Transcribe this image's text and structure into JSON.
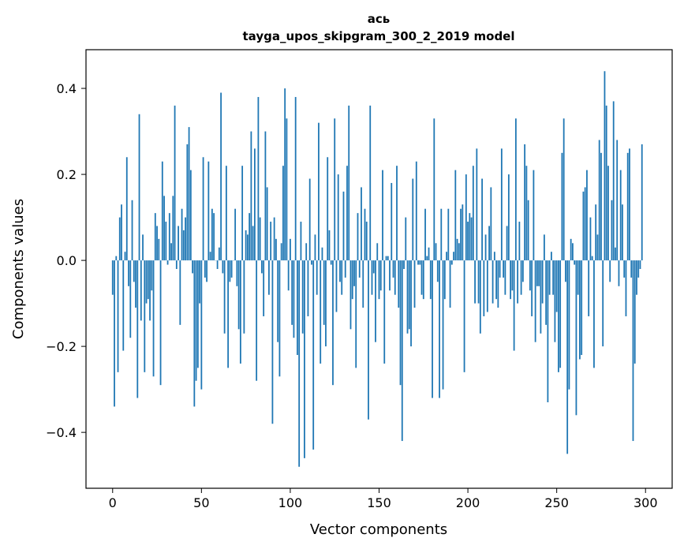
{
  "chart_data": {
    "type": "bar",
    "title_line1": "ась",
    "title_line2": "tayga_upos_skipgram_300_2_2019 model",
    "xlabel": "Vector components",
    "ylabel": "Components values",
    "xlim": [
      -15,
      315
    ],
    "ylim": [
      -0.53,
      0.49
    ],
    "xticks": [
      0,
      50,
      100,
      150,
      200,
      250,
      300
    ],
    "xtick_labels": [
      "0",
      "50",
      "100",
      "150",
      "200",
      "250",
      "300"
    ],
    "yticks": [
      -0.4,
      -0.2,
      0.0,
      0.2,
      0.4
    ],
    "ytick_labels": [
      "−0.4",
      "−0.2",
      "0.0",
      "0.2",
      "0.4"
    ],
    "bar_color": "#1f77b4",
    "grid": false,
    "values": [
      -0.08,
      -0.34,
      0.01,
      -0.26,
      0.1,
      0.13,
      -0.21,
      0.02,
      0.24,
      -0.06,
      -0.18,
      0.14,
      -0.05,
      -0.11,
      -0.32,
      0.34,
      -0.14,
      0.06,
      -0.26,
      -0.1,
      -0.09,
      -0.14,
      -0.07,
      -0.27,
      0.11,
      0.08,
      0.05,
      -0.29,
      0.23,
      0.15,
      0.09,
      -0.01,
      0.11,
      0.04,
      0.15,
      0.36,
      -0.02,
      0.08,
      -0.15,
      0.12,
      0.07,
      0.1,
      0.27,
      0.31,
      0.21,
      -0.03,
      -0.34,
      -0.28,
      -0.25,
      -0.1,
      -0.3,
      0.24,
      -0.04,
      -0.05,
      0.23,
      0.02,
      0.12,
      0.11,
      0.0,
      -0.02,
      0.03,
      0.39,
      -0.03,
      -0.17,
      0.22,
      -0.25,
      -0.05,
      -0.04,
      0.0,
      0.12,
      -0.06,
      -0.16,
      -0.24,
      0.22,
      -0.17,
      0.07,
      0.06,
      0.11,
      0.3,
      0.08,
      0.26,
      -0.28,
      0.38,
      0.1,
      -0.03,
      -0.13,
      0.3,
      0.17,
      -0.08,
      0.09,
      -0.38,
      0.1,
      0.05,
      -0.19,
      -0.27,
      0.04,
      0.22,
      0.4,
      0.33,
      -0.07,
      0.05,
      -0.15,
      -0.18,
      0.38,
      -0.22,
      -0.48,
      0.09,
      -0.17,
      -0.46,
      0.04,
      -0.13,
      0.19,
      -0.01,
      -0.44,
      0.06,
      -0.08,
      0.32,
      -0.24,
      0.03,
      -0.15,
      -0.2,
      0.24,
      0.07,
      -0.01,
      -0.29,
      0.33,
      -0.12,
      0.2,
      -0.05,
      -0.08,
      0.16,
      -0.04,
      0.22,
      0.36,
      -0.16,
      -0.09,
      -0.06,
      -0.25,
      0.11,
      -0.04,
      0.17,
      -0.11,
      0.12,
      0.09,
      -0.37,
      0.36,
      -0.08,
      -0.03,
      -0.19,
      0.04,
      -0.09,
      -0.07,
      0.21,
      -0.24,
      0.01,
      0.01,
      -0.07,
      0.18,
      -0.04,
      -0.08,
      0.22,
      -0.11,
      -0.29,
      -0.42,
      -0.02,
      0.1,
      -0.17,
      -0.16,
      -0.2,
      0.19,
      -0.11,
      0.23,
      -0.01,
      -0.01,
      -0.08,
      -0.09,
      0.12,
      0.01,
      0.03,
      -0.09,
      -0.32,
      0.33,
      0.04,
      -0.05,
      -0.32,
      0.12,
      -0.3,
      -0.09,
      0.02,
      0.12,
      -0.11,
      -0.01,
      0.02,
      0.21,
      0.05,
      0.04,
      0.12,
      0.13,
      -0.26,
      0.2,
      0.09,
      0.11,
      0.1,
      0.22,
      -0.1,
      0.26,
      -0.1,
      -0.17,
      0.19,
      -0.13,
      0.06,
      -0.12,
      0.08,
      0.17,
      -0.1,
      0.02,
      -0.09,
      -0.11,
      -0.04,
      0.26,
      -0.04,
      -0.08,
      0.08,
      0.2,
      -0.09,
      -0.07,
      -0.21,
      0.33,
      -0.1,
      0.09,
      -0.08,
      -0.05,
      0.27,
      0.22,
      0.14,
      -0.07,
      -0.13,
      0.21,
      -0.19,
      -0.06,
      -0.06,
      -0.17,
      -0.1,
      0.06,
      -0.15,
      -0.33,
      -0.08,
      0.02,
      -0.08,
      -0.19,
      -0.12,
      -0.26,
      -0.25,
      0.25,
      0.33,
      -0.05,
      -0.45,
      -0.3,
      0.05,
      0.04,
      -0.01,
      -0.36,
      -0.08,
      -0.23,
      -0.22,
      0.16,
      0.17,
      0.21,
      -0.13,
      0.1,
      0.01,
      -0.25,
      0.13,
      0.06,
      0.28,
      0.25,
      -0.2,
      0.44,
      0.36,
      0.22,
      -0.05,
      0.14,
      0.37,
      0.03,
      0.28,
      -0.06,
      0.21,
      0.13,
      -0.04,
      -0.13,
      0.25,
      0.26,
      -0.04,
      -0.42,
      -0.24,
      -0.08,
      -0.04,
      -0.02,
      0.27
    ]
  }
}
